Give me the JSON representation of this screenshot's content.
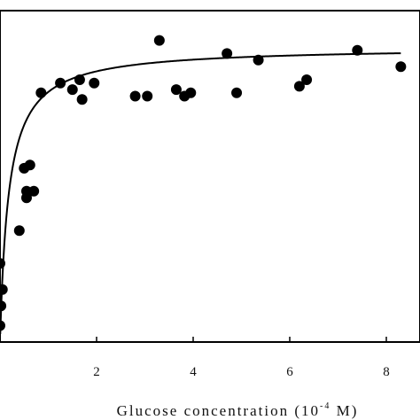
{
  "chart_data": {
    "type": "scatter",
    "title": "",
    "xlabel": {
      "prefix": "Glucose concentration (10",
      "exponent": "-4",
      "suffix": " M)"
    },
    "ylabel": "",
    "xlim": [
      0,
      8.3
    ],
    "ylim": [
      0,
      1.0
    ],
    "x_ticks": [
      2,
      4,
      6,
      8
    ],
    "grid": false,
    "legend": "none",
    "series": [
      {
        "kind": "points",
        "color": "#000000",
        "points": [
          [
            0.0,
            0.05
          ],
          [
            0.02,
            0.11
          ],
          [
            0.05,
            0.16
          ],
          [
            0.0,
            0.24
          ],
          [
            0.4,
            0.34
          ],
          [
            0.55,
            0.44
          ],
          [
            0.5,
            0.53
          ],
          [
            0.62,
            0.54
          ],
          [
            0.7,
            0.46
          ],
          [
            0.55,
            0.46
          ],
          [
            0.85,
            0.76
          ],
          [
            1.25,
            0.79
          ],
          [
            1.5,
            0.77
          ],
          [
            1.65,
            0.8
          ],
          [
            1.7,
            0.74
          ],
          [
            1.95,
            0.79
          ],
          [
            2.8,
            0.75
          ],
          [
            3.05,
            0.75
          ],
          [
            3.3,
            0.92
          ],
          [
            3.65,
            0.77
          ],
          [
            3.82,
            0.75
          ],
          [
            3.95,
            0.76
          ],
          [
            4.7,
            0.88
          ],
          [
            4.9,
            0.76
          ],
          [
            5.35,
            0.86
          ],
          [
            6.2,
            0.78
          ],
          [
            6.35,
            0.8
          ],
          [
            7.4,
            0.89
          ],
          [
            8.3,
            0.84
          ]
        ]
      },
      {
        "kind": "fit-curve",
        "color": "#000000",
        "vmax": 0.9,
        "km": 0.18
      }
    ]
  }
}
